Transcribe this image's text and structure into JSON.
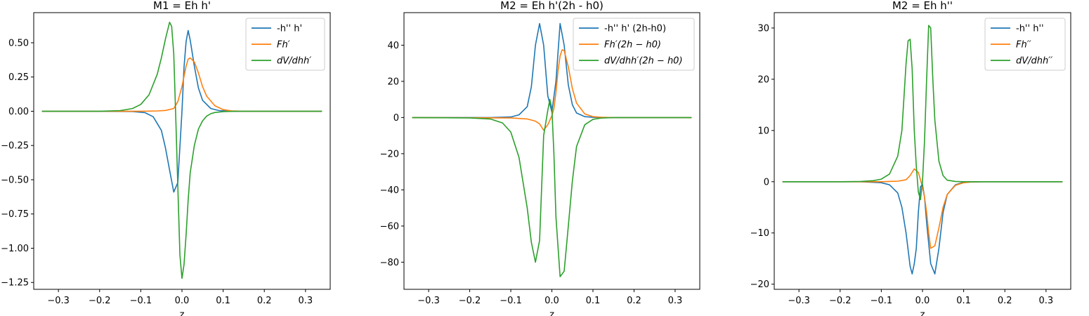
{
  "chart_data": [
    {
      "type": "line",
      "title": "M1 = Eh h'",
      "xlabel": "z",
      "ylabel": "",
      "xlim": [
        -0.36,
        0.36
      ],
      "ylim": [
        -1.3,
        0.72
      ],
      "xticks": [
        -0.3,
        -0.2,
        -0.1,
        0.0,
        0.1,
        0.2,
        0.3
      ],
      "yticks": [
        -1.25,
        -1.0,
        -0.75,
        -0.5,
        -0.25,
        0.0,
        0.25,
        0.5
      ],
      "ytick_labels": [
        "−1.25",
        "−1.00",
        "−0.75",
        "−0.50",
        "−0.25",
        "0.00",
        "0.25",
        "0.50"
      ],
      "xtick_labels": [
        "−0.3",
        "−0.2",
        "−0.1",
        "0.0",
        "0.1",
        "0.2",
        "0.3"
      ],
      "legend_position": "top-right",
      "grid": false,
      "series": [
        {
          "name": "-h'' h'",
          "color": "#1f77b4",
          "x": [
            -0.34,
            -0.2,
            -0.12,
            -0.09,
            -0.07,
            -0.05,
            -0.04,
            -0.03,
            -0.02,
            -0.01,
            0.0,
            0.005,
            0.01,
            0.015,
            0.02,
            0.03,
            0.04,
            0.05,
            0.07,
            0.09,
            0.12,
            0.2,
            0.34
          ],
          "y": [
            0,
            0,
            -0.002,
            -0.01,
            -0.04,
            -0.14,
            -0.27,
            -0.43,
            -0.59,
            -0.52,
            0.0,
            0.32,
            0.51,
            0.59,
            0.52,
            0.33,
            0.17,
            0.08,
            0.02,
            0.005,
            0.0,
            0,
            0
          ]
        },
        {
          "name": "Fh′",
          "color": "#ff7f0e",
          "x": [
            -0.34,
            -0.1,
            -0.06,
            -0.04,
            -0.02,
            -0.01,
            0.0,
            0.01,
            0.015,
            0.02,
            0.03,
            0.04,
            0.05,
            0.06,
            0.08,
            0.1,
            0.12,
            0.15,
            0.2,
            0.34
          ],
          "y": [
            0,
            0,
            0.002,
            0.006,
            0.02,
            0.07,
            0.18,
            0.33,
            0.38,
            0.39,
            0.36,
            0.28,
            0.18,
            0.11,
            0.04,
            0.012,
            0.003,
            0,
            0,
            0
          ]
        },
        {
          "name": "dV/dhh′",
          "color": "#2ca02c",
          "x": [
            -0.34,
            -0.2,
            -0.15,
            -0.12,
            -0.1,
            -0.08,
            -0.06,
            -0.05,
            -0.04,
            -0.03,
            -0.025,
            -0.02,
            -0.015,
            -0.01,
            -0.005,
            0.0,
            0.005,
            0.01,
            0.015,
            0.02,
            0.03,
            0.04,
            0.05,
            0.06,
            0.07,
            0.08,
            0.1,
            0.12,
            0.15,
            0.2,
            0.34
          ],
          "y": [
            0,
            0,
            0.005,
            0.02,
            0.05,
            0.12,
            0.27,
            0.39,
            0.53,
            0.65,
            0.62,
            0.42,
            -0.05,
            -0.55,
            -1.05,
            -1.22,
            -1.12,
            -0.9,
            -0.65,
            -0.45,
            -0.25,
            -0.13,
            -0.07,
            -0.035,
            -0.018,
            -0.009,
            -0.003,
            -0.001,
            0,
            0,
            0
          ]
        }
      ]
    },
    {
      "type": "line",
      "title": "M2 = Eh h'(2h - h0)",
      "xlabel": "z",
      "ylabel": "",
      "xlim": [
        -0.36,
        0.36
      ],
      "ylim": [
        -95,
        58
      ],
      "xticks": [
        -0.3,
        -0.2,
        -0.1,
        0.0,
        0.1,
        0.2,
        0.3
      ],
      "yticks": [
        -80,
        -60,
        -40,
        -20,
        0,
        20,
        40
      ],
      "ytick_labels": [
        "−80",
        "−60",
        "−40",
        "−20",
        "0",
        "20",
        "40"
      ],
      "xtick_labels": [
        "−0.3",
        "−0.2",
        "−0.1",
        "0.0",
        "0.1",
        "0.2",
        "0.3"
      ],
      "legend_position": "top-right",
      "grid": false,
      "series": [
        {
          "name": "-h'' h' (2h-h0)",
          "color": "#1f77b4",
          "x": [
            -0.34,
            -0.15,
            -0.1,
            -0.08,
            -0.06,
            -0.05,
            -0.04,
            -0.03,
            -0.02,
            -0.01,
            0.0,
            0.01,
            0.02,
            0.03,
            0.04,
            0.05,
            0.06,
            0.08,
            0.1,
            0.15,
            0.34
          ],
          "y": [
            0,
            0,
            0.3,
            1.5,
            6,
            17,
            40,
            52,
            40,
            12,
            3,
            20,
            52,
            40,
            18,
            7,
            2.5,
            0.5,
            0.1,
            0,
            0
          ]
        },
        {
          "name": "Fh′(2h − h0)",
          "color": "#ff7f0e",
          "x": [
            -0.34,
            -0.1,
            -0.06,
            -0.04,
            -0.03,
            -0.02,
            -0.01,
            0.0,
            0.005,
            0.01,
            0.015,
            0.02,
            0.025,
            0.03,
            0.04,
            0.05,
            0.06,
            0.08,
            0.1,
            0.12,
            0.15,
            0.34
          ],
          "y": [
            0,
            -0.2,
            -0.8,
            -2,
            -3.5,
            -7,
            -4,
            1,
            5,
            14,
            26,
            34,
            37.5,
            37,
            28,
            16,
            8,
            2,
            0.5,
            0.1,
            0,
            0
          ]
        },
        {
          "name": "dV/dhh′(2h − h0)",
          "color": "#2ca02c",
          "x": [
            -0.34,
            -0.2,
            -0.15,
            -0.12,
            -0.1,
            -0.08,
            -0.06,
            -0.05,
            -0.04,
            -0.03,
            -0.02,
            -0.01,
            -0.005,
            0.0,
            0.005,
            0.01,
            0.02,
            0.03,
            0.04,
            0.05,
            0.06,
            0.08,
            0.1,
            0.12,
            0.15,
            0.2,
            0.34
          ],
          "y": [
            0,
            -0.2,
            -0.8,
            -3,
            -8,
            -22,
            -50,
            -69,
            -80,
            -68,
            -10,
            4,
            10,
            5,
            -20,
            -55,
            -88,
            -85,
            -60,
            -35,
            -16,
            -4,
            -1,
            -0.3,
            0,
            0,
            0
          ]
        }
      ]
    },
    {
      "type": "line",
      "title": "M2 = Eh h''",
      "xlabel": "z",
      "ylabel": "",
      "xlim": [
        -0.36,
        0.36
      ],
      "ylim": [
        -21,
        33
      ],
      "xticks": [
        -0.3,
        -0.2,
        -0.1,
        0.0,
        0.1,
        0.2,
        0.3
      ],
      "yticks": [
        -20,
        -10,
        0,
        10,
        20,
        30
      ],
      "ytick_labels": [
        "−20",
        "−10",
        "0",
        "10",
        "20",
        "30"
      ],
      "xtick_labels": [
        "−0.3",
        "−0.2",
        "−0.1",
        "0.0",
        "0.1",
        "0.2",
        "0.3"
      ],
      "legend_position": "top-right",
      "grid": false,
      "series": [
        {
          "name": "-h'' h''",
          "color": "#1f77b4",
          "x": [
            -0.34,
            -0.15,
            -0.1,
            -0.08,
            -0.06,
            -0.05,
            -0.04,
            -0.03,
            -0.025,
            -0.02,
            -0.015,
            -0.01,
            -0.005,
            0.0,
            0.005,
            0.01,
            0.02,
            0.03,
            0.04,
            0.05,
            0.06,
            0.08,
            0.1,
            0.15,
            0.34
          ],
          "y": [
            0,
            0,
            -0.2,
            -0.6,
            -2.2,
            -5,
            -10,
            -16.5,
            -18,
            -16,
            -13,
            -6,
            -1,
            -0.5,
            -3,
            -8,
            -16,
            -18,
            -13,
            -6,
            -2.5,
            -0.6,
            -0.1,
            0,
            0
          ]
        },
        {
          "name": "Fh′′",
          "color": "#ff7f0e",
          "x": [
            -0.34,
            -0.1,
            -0.06,
            -0.04,
            -0.03,
            -0.02,
            -0.01,
            0.0,
            0.005,
            0.01,
            0.015,
            0.02,
            0.03,
            0.04,
            0.05,
            0.06,
            0.08,
            0.1,
            0.12,
            0.15,
            0.34
          ],
          "y": [
            0,
            0,
            0.1,
            0.4,
            1.2,
            2.5,
            1.8,
            -1,
            -3,
            -6,
            -10,
            -13,
            -12.5,
            -9,
            -5,
            -2.5,
            -0.7,
            -0.2,
            -0.05,
            0,
            0
          ]
        },
        {
          "name": "dV/dhh′′",
          "color": "#2ca02c",
          "x": [
            -0.34,
            -0.2,
            -0.15,
            -0.12,
            -0.1,
            -0.08,
            -0.06,
            -0.05,
            -0.04,
            -0.035,
            -0.03,
            -0.025,
            -0.02,
            -0.015,
            -0.01,
            -0.005,
            0.0,
            0.005,
            0.01,
            0.015,
            0.02,
            0.025,
            0.03,
            0.04,
            0.05,
            0.06,
            0.08,
            0.1,
            0.12,
            0.15,
            0.34
          ],
          "y": [
            0,
            0,
            0.05,
            0.2,
            0.5,
            1.5,
            5,
            10,
            23,
            27.5,
            27.8,
            22,
            10,
            3,
            -2,
            -3.5,
            0,
            8,
            20,
            30.5,
            30,
            20,
            12,
            4,
            1.2,
            0.3,
            0.05,
            0,
            0,
            0,
            0
          ]
        }
      ]
    }
  ]
}
